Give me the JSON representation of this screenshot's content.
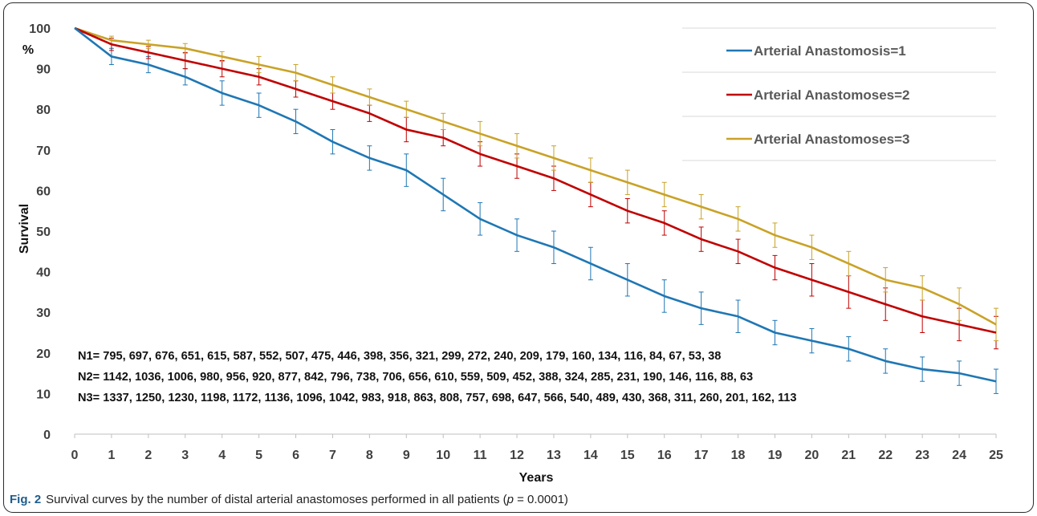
{
  "chart_data": {
    "type": "line",
    "x": [
      0,
      1,
      2,
      3,
      4,
      5,
      6,
      7,
      8,
      9,
      10,
      11,
      12,
      13,
      14,
      15,
      16,
      17,
      18,
      19,
      20,
      21,
      22,
      23,
      24,
      25
    ],
    "xlabel": "Years",
    "ylabel": "Survival",
    "ylabel_unit": "%",
    "xlim": [
      0,
      25
    ],
    "ylim": [
      0,
      100
    ],
    "yticks": [
      0,
      10,
      20,
      30,
      40,
      50,
      60,
      70,
      80,
      90,
      100
    ],
    "grid": false,
    "legend_position": "top-right",
    "series": [
      {
        "name": "Arterial Anastomosis=1",
        "color": "#1f77b4",
        "values": [
          100,
          93,
          91,
          88,
          84,
          81,
          77,
          72,
          68,
          65,
          59,
          53,
          49,
          46,
          42,
          38,
          34,
          31,
          29,
          25,
          23,
          21,
          18,
          16,
          15,
          13
        ],
        "error": [
          0,
          2,
          2,
          2,
          3,
          3,
          3,
          3,
          3,
          4,
          4,
          4,
          4,
          4,
          4,
          4,
          4,
          4,
          4,
          3,
          3,
          3,
          3,
          3,
          3,
          3
        ]
      },
      {
        "name": "Arterial Anastomoses=2",
        "color": "#c00000",
        "values": [
          100,
          96,
          94,
          92,
          90,
          88,
          85,
          82,
          79,
          75,
          73,
          69,
          66,
          63,
          59,
          55,
          52,
          48,
          45,
          41,
          38,
          35,
          32,
          29,
          27,
          25
        ],
        "error": [
          0,
          1.5,
          1.5,
          2,
          2,
          2,
          2,
          2,
          2,
          3,
          2,
          3,
          3,
          3,
          3,
          3,
          3,
          3,
          3,
          3,
          4,
          4,
          4,
          4,
          4,
          4
        ]
      },
      {
        "name": "Arterial Anastomoses=3",
        "color": "#c9a227",
        "values": [
          100,
          97,
          96,
          95,
          93,
          91,
          89,
          86,
          83,
          80,
          77,
          74,
          71,
          68,
          65,
          62,
          59,
          56,
          53,
          49,
          46,
          42,
          38,
          36,
          32,
          27
        ],
        "error": [
          0,
          1,
          1,
          1.2,
          1.2,
          2,
          2,
          2,
          2,
          2,
          2,
          3,
          3,
          3,
          3,
          3,
          3,
          3,
          3,
          3,
          3,
          3,
          3,
          3,
          4,
          4
        ]
      }
    ],
    "annotations": [
      "N1= 795, 697, 676, 651, 615, 587, 552, 507, 475, 446, 398, 356, 321, 299, 272, 240, 209, 179, 160, 134, 116, 84, 67, 53, 38",
      "N2= 1142, 1036, 1006, 980, 956, 920, 877, 842, 796, 738, 706, 656, 610, 559, 509, 452, 388, 324, 285, 231, 190, 146, 116, 88, 63",
      "N3= 1337, 1250, 1230, 1198, 1172, 1136, 1096, 1042, 983, 918, 863, 808, 757, 698, 647, 566, 540, 489, 430, 368, 311, 260, 201, 162, 113"
    ]
  },
  "caption": {
    "label": "Fig. 2",
    "text_before": "Survival curves by the number of distal arterial anastomoses performed in all patients (",
    "p_symbol": "p",
    "text_after": " = 0.0001)"
  }
}
